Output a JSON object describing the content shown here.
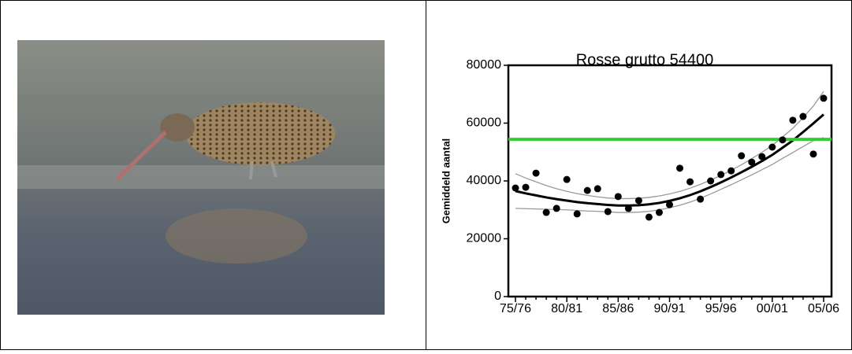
{
  "chart_data": {
    "type": "scatter",
    "title": "Rosse grutto 54400",
    "y_label": "Gemiddeld aantal",
    "categories": [
      "75/76",
      null,
      null,
      null,
      null,
      "80/81",
      null,
      null,
      null,
      null,
      "85/86",
      null,
      null,
      null,
      null,
      "90/91",
      null,
      null,
      null,
      null,
      "95/96",
      null,
      null,
      null,
      null,
      "00/01",
      null,
      null,
      null,
      null,
      "05/06"
    ],
    "points": {
      "color": "#000000",
      "values": [
        37550,
        37800,
        42700,
        29100,
        30500,
        40500,
        28600,
        36700,
        37300,
        29400,
        34600,
        30500,
        33200,
        27500,
        29100,
        31800,
        44400,
        39700,
        33700,
        40000,
        42200,
        43500,
        48700,
        46500,
        48400,
        51700,
        54200,
        61000,
        62300,
        49300,
        68600
      ]
    },
    "trend": {
      "color": "#000000",
      "values": [
        36500,
        35700,
        35000,
        34300,
        33700,
        33200,
        32700,
        32300,
        32000,
        31700,
        31500,
        31500,
        31600,
        31900,
        32400,
        33100,
        34000,
        35100,
        36400,
        37900,
        39500,
        41200,
        43000,
        44900,
        46900,
        49000,
        51500,
        54000,
        56900,
        59900,
        63000
      ]
    },
    "upper": {
      "color": "#999999",
      "values": [
        42500,
        41000,
        39700,
        38400,
        37300,
        36400,
        35600,
        35000,
        34500,
        34100,
        33900,
        33900,
        34000,
        34300,
        34800,
        35500,
        36400,
        37500,
        38800,
        40300,
        41900,
        43700,
        45600,
        47700,
        49900,
        52300,
        55200,
        58200,
        61900,
        65900,
        71000
      ]
    },
    "lower": {
      "color": "#999999",
      "values": [
        30500,
        30400,
        30300,
        30200,
        30100,
        30000,
        29800,
        29600,
        29500,
        29300,
        29100,
        29100,
        29200,
        29500,
        30000,
        30700,
        31600,
        32700,
        34000,
        35500,
        37100,
        38700,
        40400,
        42100,
        43900,
        45700,
        47800,
        49800,
        51900,
        53900,
        55000
      ]
    },
    "threshold": {
      "color": "#33cc33",
      "value": 54400
    },
    "ylim": [
      0,
      80000
    ],
    "yticks": [
      0,
      20000,
      40000,
      60000,
      80000
    ]
  }
}
